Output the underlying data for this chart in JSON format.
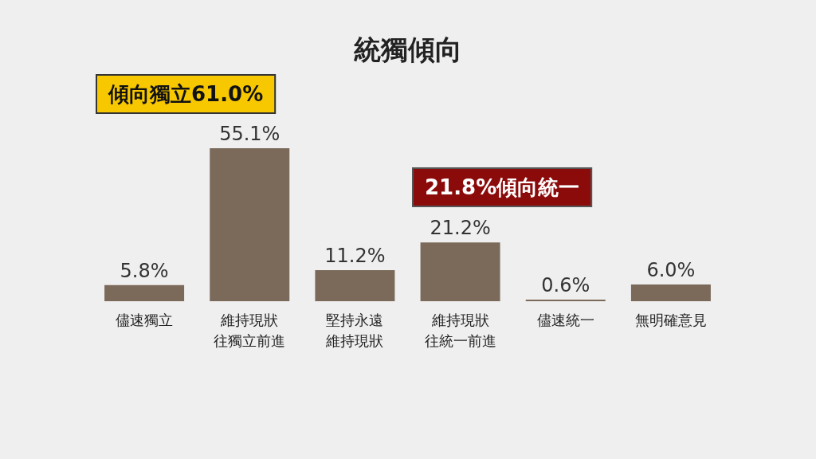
{
  "chart_data": {
    "type": "bar",
    "title": "統獨傾向",
    "categories": [
      "儘速獨立",
      "維持現狀往獨立前進",
      "堅持永遠維持現狀",
      "維持現狀往統一前進",
      "儘速統一",
      "無明確意見"
    ],
    "values": [
      5.8,
      55.1,
      11.2,
      21.2,
      0.6,
      6.0
    ],
    "value_labels": [
      "5.8%",
      "55.1%",
      "11.2%",
      "21.2%",
      "0.6%",
      "6.0%"
    ],
    "color": "#7b6a5a",
    "annotations": [
      "傾向獨立61.0%",
      "21.8%傾向統一"
    ]
  }
}
